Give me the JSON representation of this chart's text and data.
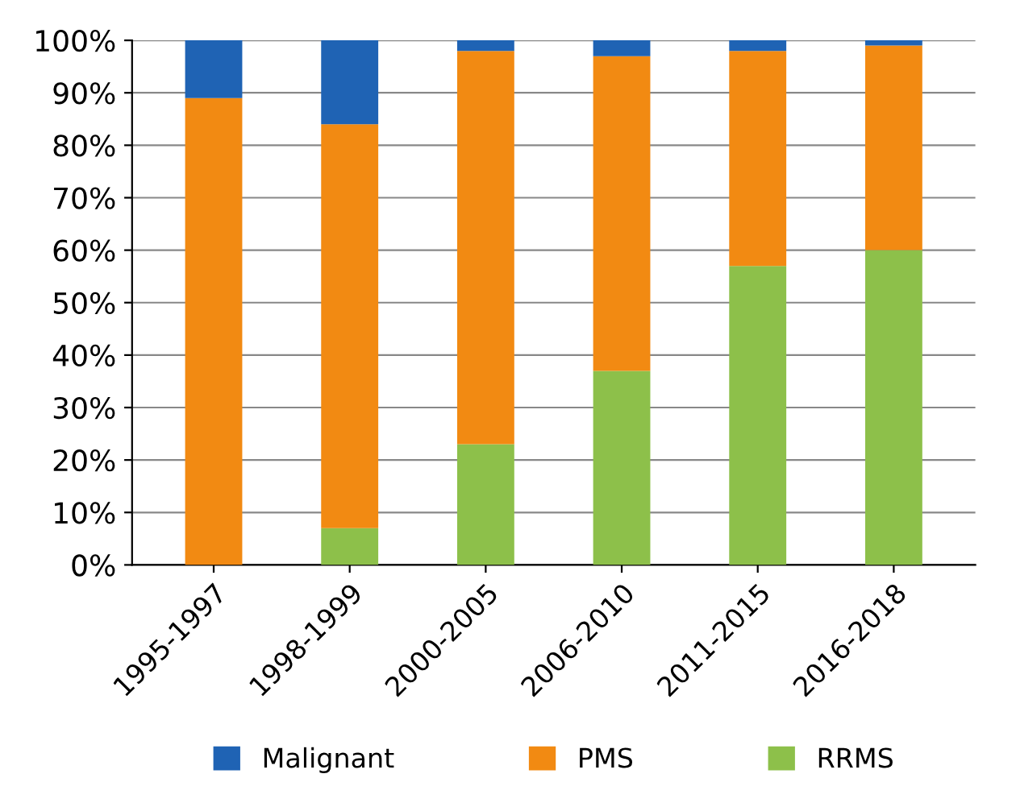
{
  "chart_data": {
    "type": "bar",
    "stacked": true,
    "categories": [
      "1995-1997",
      "1998-1999",
      "2000-2005",
      "2006-2010",
      "2011-2015",
      "2016-2018"
    ],
    "series": [
      {
        "name": "RRMS",
        "color": "#8dc04a",
        "values": [
          0,
          7,
          23,
          37,
          57,
          60
        ]
      },
      {
        "name": "PMS",
        "color": "#f28a12",
        "values": [
          89,
          77,
          75,
          60,
          41,
          39
        ]
      },
      {
        "name": "Malignant",
        "color": "#1f63b4",
        "values": [
          11,
          16,
          2,
          3,
          2,
          1
        ]
      }
    ],
    "ylim": [
      0,
      100
    ],
    "yticks": [
      {
        "value": 0,
        "label": "0%"
      },
      {
        "value": 10,
        "label": "10%"
      },
      {
        "value": 20,
        "label": "20%"
      },
      {
        "value": 30,
        "label": "30%"
      },
      {
        "value": 40,
        "label": "40%"
      },
      {
        "value": 50,
        "label": "50%"
      },
      {
        "value": 60,
        "label": "60%"
      },
      {
        "value": 70,
        "label": "70%"
      },
      {
        "value": 80,
        "label": "80%"
      },
      {
        "value": 90,
        "label": "90%"
      },
      {
        "value": 100,
        "label": "100%"
      }
    ],
    "grid": "y",
    "legend": "bottom"
  }
}
